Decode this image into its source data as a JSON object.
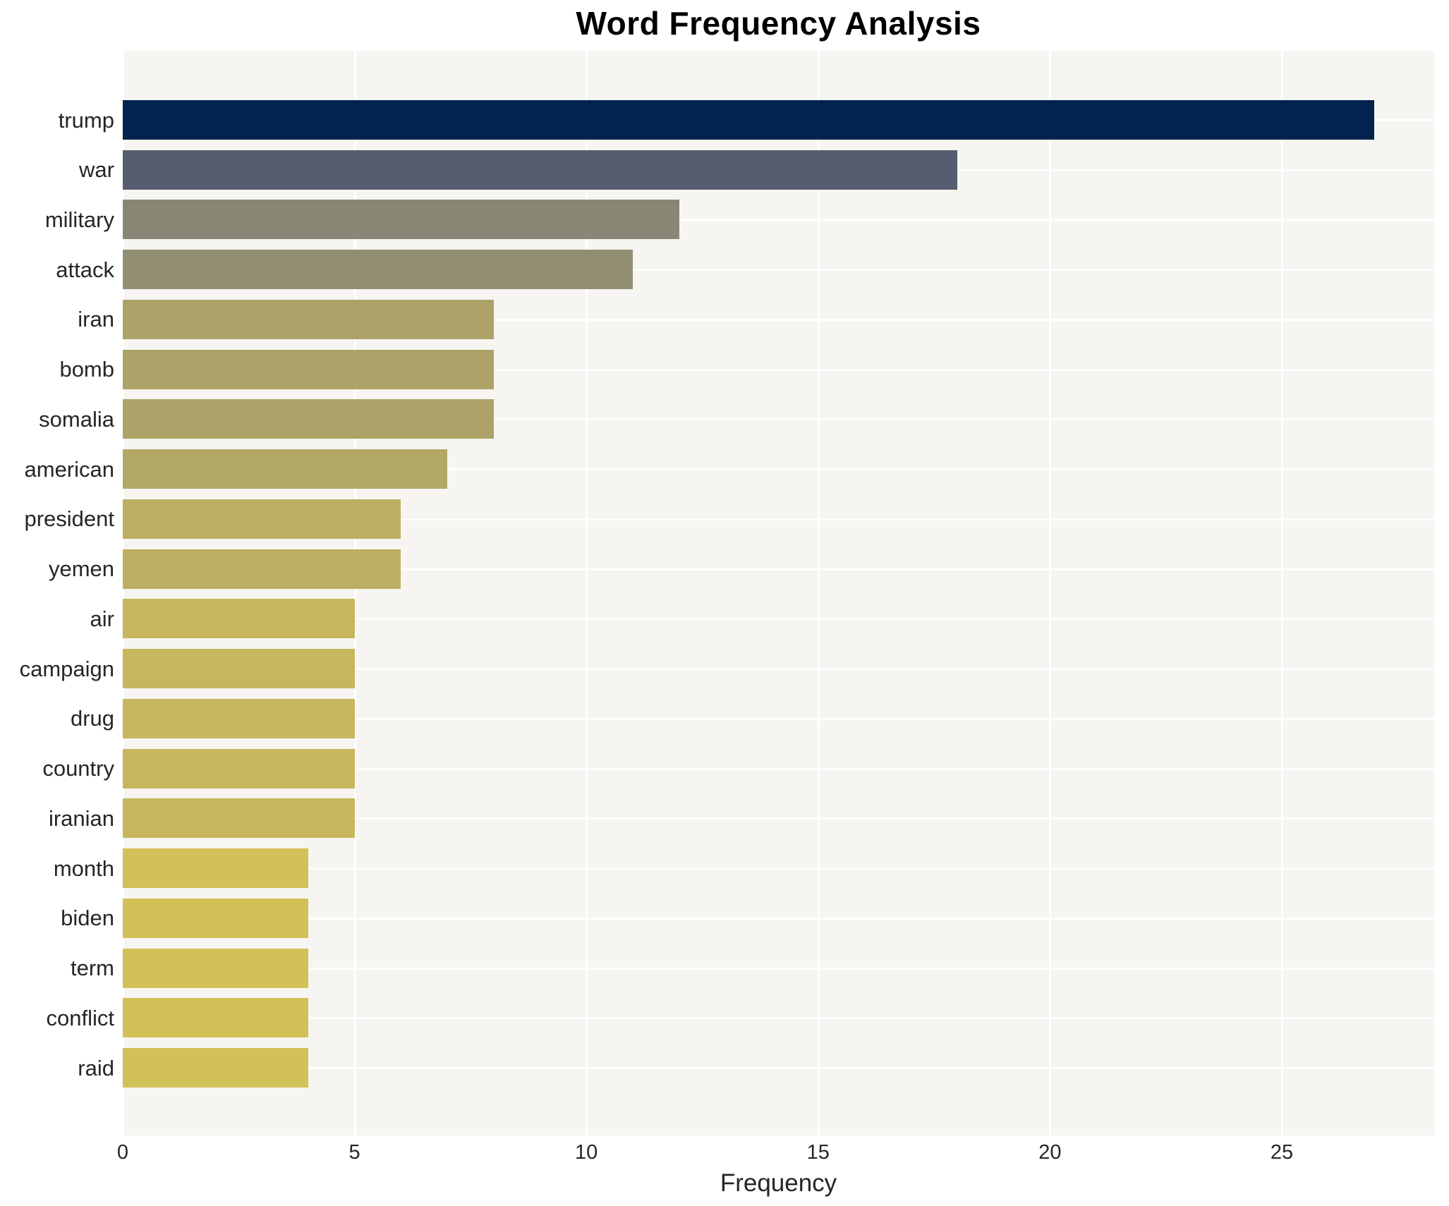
{
  "title": "Word Frequency Analysis",
  "chart_data": {
    "type": "bar",
    "orientation": "horizontal",
    "title": "Word Frequency Analysis",
    "xlabel": "Frequency",
    "ylabel": "",
    "categories": [
      "trump",
      "war",
      "military",
      "attack",
      "iran",
      "bomb",
      "somalia",
      "american",
      "president",
      "yemen",
      "air",
      "campaign",
      "drug",
      "country",
      "iranian",
      "month",
      "biden",
      "term",
      "conflict",
      "raid"
    ],
    "values": [
      27,
      18,
      12,
      11,
      8,
      8,
      8,
      7,
      6,
      6,
      5,
      5,
      5,
      5,
      5,
      4,
      4,
      4,
      4,
      4
    ],
    "bar_colors": [
      "#02234d",
      "#565d70",
      "#898675",
      "#918e74",
      "#ada267",
      "#ada267",
      "#ada267",
      "#b2a766",
      "#bcae62",
      "#bcae62",
      "#c6b65d",
      "#c6b65d",
      "#c6b65d",
      "#c6b65d",
      "#c6b65d",
      "#d2c156",
      "#d2c156",
      "#d2c156",
      "#d2c156",
      "#d2c156"
    ],
    "xticks": [
      0,
      5,
      10,
      15,
      20,
      25
    ],
    "xlim": [
      0,
      28.3
    ],
    "grid": true,
    "legend": "none",
    "plot_bg": "#f6f5f2",
    "grid_color": "#ffffff",
    "text_color": "#262626"
  },
  "layout_note": ""
}
